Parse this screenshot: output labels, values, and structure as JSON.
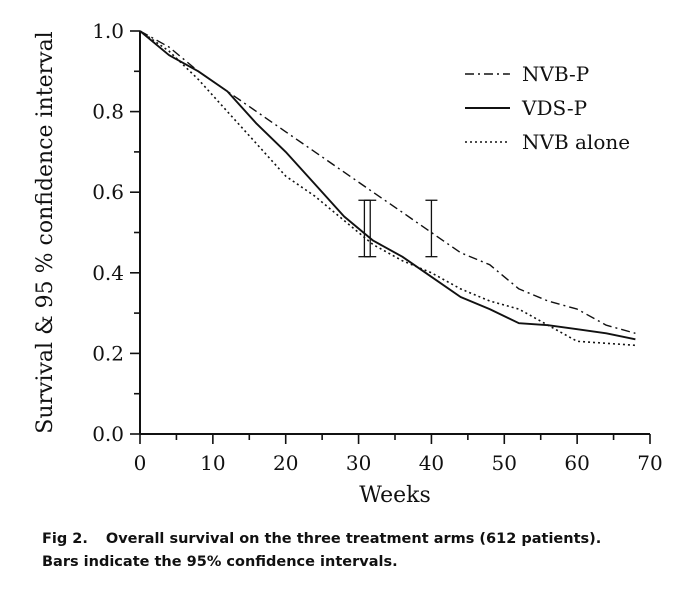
{
  "chart_data": {
    "type": "line",
    "xlabel": "Weeks",
    "ylabel": "Survival & 95 % confidence interval",
    "xlim": [
      0,
      70
    ],
    "ylim": [
      0,
      1.0
    ],
    "x_ticks": [
      0,
      10,
      20,
      30,
      40,
      50,
      60,
      70
    ],
    "x_minor_step": 5,
    "y_ticks": [
      0.0,
      0.2,
      0.4,
      0.6,
      0.8,
      1.0
    ],
    "y_minor_step": 0.1,
    "x_tick_labels": [
      "0",
      "10",
      "20",
      "30",
      "40",
      "50",
      "60",
      "70"
    ],
    "y_tick_labels": [
      "0.0",
      "0.2",
      "0.4",
      "0.6",
      "0.8",
      "1.0"
    ],
    "grid": false,
    "legend_position": "top-right",
    "series": [
      {
        "name": "NVB-P",
        "style": "dash-dot",
        "x": [
          0,
          4,
          8,
          12,
          16,
          20,
          24,
          28,
          32,
          36,
          40,
          44,
          48,
          52,
          56,
          60,
          64,
          68
        ],
        "y": [
          1.0,
          0.96,
          0.9,
          0.85,
          0.8,
          0.75,
          0.7,
          0.65,
          0.6,
          0.55,
          0.5,
          0.45,
          0.42,
          0.36,
          0.33,
          0.31,
          0.27,
          0.25
        ]
      },
      {
        "name": "VDS-P",
        "style": "solid",
        "x": [
          0,
          4,
          8,
          12,
          16,
          20,
          24,
          28,
          32,
          36,
          40,
          44,
          48,
          52,
          56,
          60,
          64,
          68
        ],
        "y": [
          1.0,
          0.94,
          0.9,
          0.85,
          0.77,
          0.7,
          0.62,
          0.54,
          0.48,
          0.44,
          0.39,
          0.34,
          0.31,
          0.275,
          0.27,
          0.26,
          0.25,
          0.235
        ]
      },
      {
        "name": "NVB alone",
        "style": "dotted",
        "x": [
          0,
          4,
          8,
          12,
          16,
          20,
          24,
          28,
          32,
          36,
          40,
          44,
          48,
          52,
          56,
          60,
          64,
          68
        ],
        "y": [
          1.0,
          0.95,
          0.88,
          0.8,
          0.72,
          0.64,
          0.59,
          0.53,
          0.47,
          0.43,
          0.4,
          0.36,
          0.33,
          0.31,
          0.27,
          0.23,
          0.225,
          0.22
        ]
      }
    ],
    "error_bars": [
      {
        "x": 30.8,
        "low": 0.44,
        "high": 0.58
      },
      {
        "x": 31.6,
        "low": 0.44,
        "high": 0.58
      },
      {
        "x": 40,
        "low": 0.44,
        "high": 0.58
      }
    ]
  },
  "caption": {
    "label": "Fig 2.",
    "line1": "Overall survival on the three treatment arms (612 patients).",
    "line2": "Bars indicate the 95% confidence intervals."
  }
}
